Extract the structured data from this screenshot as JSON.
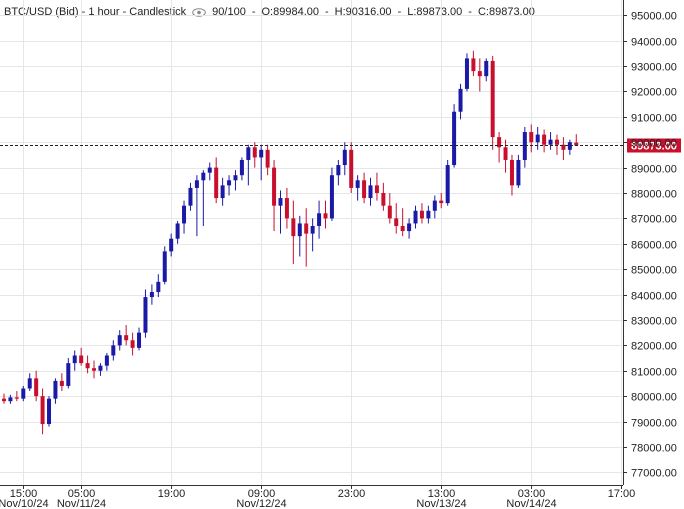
{
  "header": {
    "symbol": "BTC/USD (Bid) - 1 hour - Candlestick",
    "visible": "90/100",
    "open": "O:89984.00",
    "high": "H:90316.00",
    "low": "L:89873.00",
    "close": "C:89873.00"
  },
  "colors": {
    "up": "#1a1aa6",
    "down": "#c8102e",
    "grid": "#e6e6e6",
    "axis": "#333333"
  },
  "chart_data": {
    "type": "candlestick",
    "title": "BTC/USD (Bid) - 1 hour - Candlestick",
    "ylim": [
      76500,
      95600
    ],
    "yticks": [
      77000,
      78000,
      79000,
      80000,
      81000,
      82000,
      83000,
      84000,
      85000,
      86000,
      87000,
      88000,
      89000,
      90000,
      91000,
      92000,
      93000,
      94000,
      95000
    ],
    "ytick_labels": [
      "77000.00",
      "78000.00",
      "79000.00",
      "80000.00",
      "81000.00",
      "82000.00",
      "83000.00",
      "84000.00",
      "85000.00",
      "86000.00",
      "87000.00",
      "88000.00",
      "89000.00",
      "90000.00",
      "91000.00",
      "92000.00",
      "93000.00",
      "94000.00",
      "95000.00"
    ],
    "xticks": [
      {
        "index": 3,
        "time": "15:00",
        "date": "Nov/10/24"
      },
      {
        "index": 12,
        "time": "05:00",
        "date": "Nov/11/24"
      },
      {
        "index": 26,
        "time": "19:00",
        "date": ""
      },
      {
        "index": 40,
        "time": "09:00",
        "date": "Nov/12/24"
      },
      {
        "index": 54,
        "time": "23:00",
        "date": ""
      },
      {
        "index": 68,
        "time": "13:00",
        "date": "Nov/13/24"
      },
      {
        "index": 82,
        "time": "03:00",
        "date": "Nov/14/24"
      },
      {
        "index": 96,
        "time": "17:00",
        "date": ""
      }
    ],
    "last_price": 89873,
    "last_price_label": "89873.00",
    "grid": true,
    "candles": [
      [
        79900,
        80100,
        79700,
        79800
      ],
      [
        79800,
        80050,
        79700,
        79950
      ],
      [
        79950,
        80200,
        79800,
        79900
      ],
      [
        79900,
        80400,
        79800,
        80300
      ],
      [
        80300,
        80900,
        80200,
        80700
      ],
      [
        80700,
        81000,
        79800,
        80000
      ],
      [
        80000,
        80300,
        78500,
        78900
      ],
      [
        78900,
        80000,
        78800,
        79900
      ],
      [
        79900,
        80700,
        79700,
        80600
      ],
      [
        80600,
        80900,
        80200,
        80400
      ],
      [
        80400,
        81500,
        80300,
        81300
      ],
      [
        81300,
        81800,
        81000,
        81600
      ],
      [
        81600,
        81900,
        81200,
        81300
      ],
      [
        81300,
        81600,
        80900,
        81100
      ],
      [
        81100,
        81400,
        80700,
        81000
      ],
      [
        81000,
        81300,
        80800,
        81200
      ],
      [
        81200,
        81700,
        81000,
        81600
      ],
      [
        81600,
        82200,
        81400,
        82000
      ],
      [
        82000,
        82600,
        81800,
        82400
      ],
      [
        82400,
        82800,
        82000,
        82200
      ],
      [
        82200,
        82500,
        81600,
        81900
      ],
      [
        81900,
        82700,
        81800,
        82500
      ],
      [
        82500,
        84200,
        82300,
        83900
      ],
      [
        83900,
        84400,
        83600,
        84100
      ],
      [
        84100,
        84800,
        83900,
        84500
      ],
      [
        84500,
        85900,
        84400,
        85700
      ],
      [
        85700,
        86400,
        85500,
        86200
      ],
      [
        86200,
        86900,
        86000,
        86800
      ],
      [
        86800,
        87700,
        86400,
        87500
      ],
      [
        87500,
        88400,
        87300,
        88200
      ],
      [
        88200,
        88700,
        86300,
        88500
      ],
      [
        88500,
        88900,
        86700,
        88800
      ],
      [
        88800,
        89200,
        88500,
        89000
      ],
      [
        89000,
        89400,
        87600,
        87800
      ],
      [
        87800,
        88600,
        87500,
        88300
      ],
      [
        88300,
        88700,
        87900,
        88500
      ],
      [
        88500,
        88900,
        88100,
        88700
      ],
      [
        88700,
        89400,
        88500,
        89300
      ],
      [
        89300,
        89900,
        88300,
        89800
      ],
      [
        89800,
        90000,
        89000,
        89400
      ],
      [
        89400,
        89900,
        88500,
        89700
      ],
      [
        89700,
        89900,
        88700,
        89000
      ],
      [
        89000,
        89300,
        86500,
        87500
      ],
      [
        87500,
        88100,
        86400,
        87800
      ],
      [
        87800,
        88200,
        86600,
        87000
      ],
      [
        87000,
        87700,
        85200,
        86300
      ],
      [
        86300,
        87100,
        85500,
        86800
      ],
      [
        86800,
        87400,
        85100,
        86400
      ],
      [
        86400,
        87000,
        85700,
        86700
      ],
      [
        86700,
        87700,
        86200,
        87200
      ],
      [
        87200,
        87700,
        86600,
        87000
      ],
      [
        87000,
        89000,
        86900,
        88700
      ],
      [
        88700,
        89300,
        88300,
        89100
      ],
      [
        89100,
        90000,
        88700,
        89700
      ],
      [
        89700,
        90000,
        88000,
        88200
      ],
      [
        88200,
        88700,
        87700,
        88500
      ],
      [
        88500,
        88800,
        87600,
        87800
      ],
      [
        87800,
        88600,
        87500,
        88300
      ],
      [
        88300,
        88800,
        87700,
        88000
      ],
      [
        88000,
        88400,
        87300,
        87500
      ],
      [
        87500,
        88000,
        86800,
        87000
      ],
      [
        87000,
        87600,
        86400,
        86700
      ],
      [
        86700,
        87400,
        86300,
        86500
      ],
      [
        86500,
        87000,
        86200,
        86800
      ],
      [
        86800,
        87500,
        86600,
        87300
      ],
      [
        87300,
        87600,
        86800,
        87000
      ],
      [
        87000,
        87500,
        86800,
        87300
      ],
      [
        87300,
        87900,
        87000,
        87700
      ],
      [
        87700,
        88000,
        87400,
        87600
      ],
      [
        87600,
        89300,
        87500,
        89100
      ],
      [
        89100,
        91500,
        89000,
        91200
      ],
      [
        91200,
        92300,
        90900,
        92100
      ],
      [
        92100,
        93500,
        92000,
        93300
      ],
      [
        93300,
        93600,
        92600,
        92800
      ],
      [
        92800,
        93300,
        92000,
        92600
      ],
      [
        92600,
        93300,
        92400,
        93200
      ],
      [
        93200,
        93400,
        89700,
        90200
      ],
      [
        90200,
        90400,
        89200,
        89800
      ],
      [
        89800,
        90100,
        88800,
        89300
      ],
      [
        89300,
        89500,
        87900,
        88300
      ],
      [
        88300,
        89500,
        88200,
        89300
      ],
      [
        89300,
        90600,
        89000,
        90400
      ],
      [
        90400,
        90700,
        89600,
        90000
      ],
      [
        90000,
        90600,
        89700,
        90300
      ],
      [
        90300,
        90500,
        89600,
        89900
      ],
      [
        89900,
        90400,
        89700,
        90100
      ],
      [
        90100,
        90300,
        89500,
        89900
      ],
      [
        89900,
        90200,
        89300,
        89700
      ],
      [
        89700,
        90100,
        89500,
        90000
      ],
      [
        89984,
        90316,
        89873,
        89873
      ]
    ]
  }
}
